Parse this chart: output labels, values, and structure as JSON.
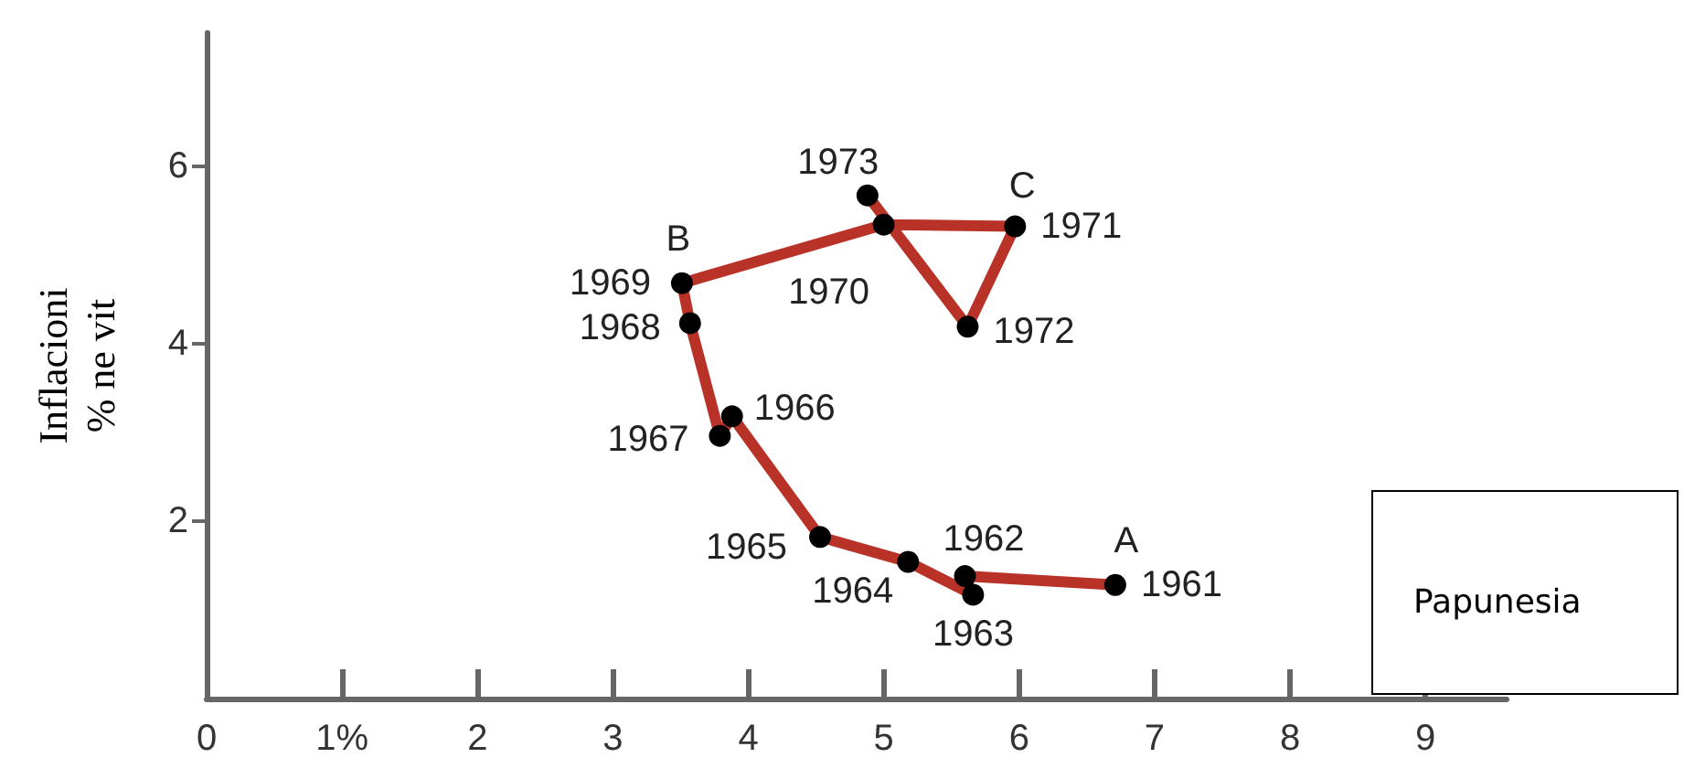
{
  "chart_data": {
    "type": "line",
    "ylabel": "Inflacioni\n% ne vit",
    "marker": "circle",
    "line_style": "solid",
    "x": [
      6.71,
      5.6,
      5.66,
      5.18,
      4.53,
      3.88,
      3.79,
      3.57,
      3.51,
      5.0,
      5.97,
      5.62,
      4.88
    ],
    "series": [
      {
        "color": "#b83227",
        "values": [
          1.28,
          1.38,
          1.17,
          1.54,
          1.82,
          3.18,
          2.96,
          4.23,
          4.68,
          5.34,
          5.32,
          4.19,
          5.67
        ]
      }
    ],
    "xlim": [
      0,
      9.6
    ],
    "xticks": [
      0,
      {
        "value": 1,
        "label": "1%"
      },
      2,
      3,
      4,
      5,
      6,
      7,
      8,
      9
    ],
    "ylim": [
      0,
      7.5
    ],
    "yticks": [
      2,
      4,
      6
    ],
    "annotations": [
      {
        "text": "1961",
        "x": 6.71,
        "y": 1.28
      },
      {
        "text": "1962",
        "x": 5.6,
        "y": 1.38
      },
      {
        "text": "1963",
        "x": 5.66,
        "y": 1.17
      },
      {
        "text": "1964",
        "x": 5.18,
        "y": 1.54
      },
      {
        "text": "1965",
        "x": 4.53,
        "y": 1.82
      },
      {
        "text": "1966",
        "x": 3.88,
        "y": 3.18
      },
      {
        "text": "1967",
        "x": 3.79,
        "y": 2.96
      },
      {
        "text": "1968",
        "x": 3.57,
        "y": 4.23
      },
      {
        "text": "1969",
        "x": 3.51,
        "y": 4.68
      },
      {
        "text": "1970",
        "x": 5.0,
        "y": 5.34
      },
      {
        "text": "1971",
        "x": 5.97,
        "y": 5.32
      },
      {
        "text": "1972",
        "x": 5.62,
        "y": 4.19
      },
      {
        "text": "1973",
        "x": 4.88,
        "y": 5.67
      },
      {
        "text": "A",
        "x": 6.71,
        "y": 1.28
      },
      {
        "text": "B",
        "x": 3.51,
        "y": 4.68
      },
      {
        "text": "C",
        "x": 5.97,
        "y": 5.32
      },
      "Papunesia"
    ]
  }
}
